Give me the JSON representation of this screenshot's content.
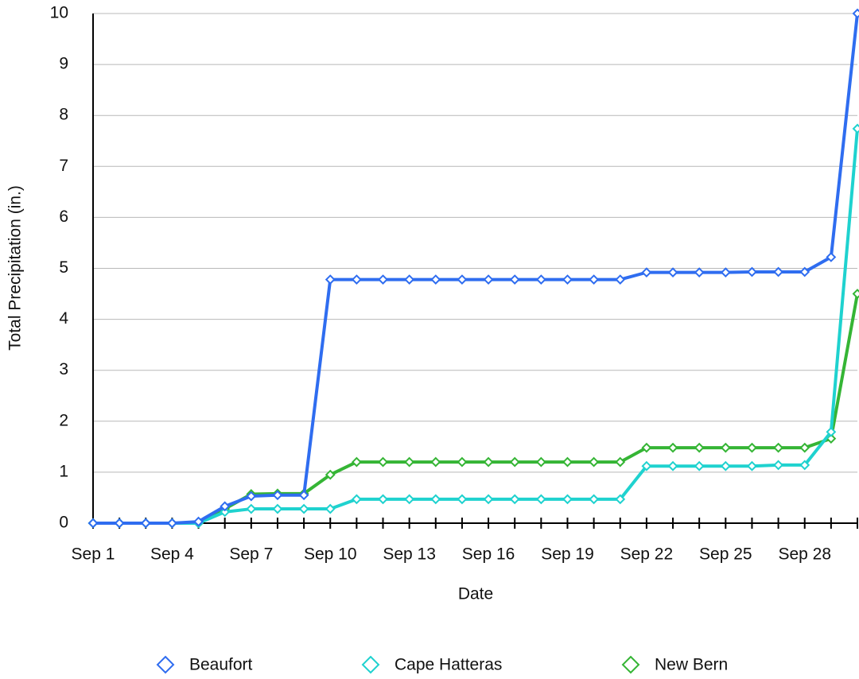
{
  "chart_data": {
    "type": "line",
    "x_label": "Date",
    "y_label": "Total Precipitation (in.)",
    "categories": [
      "Sep 1",
      null,
      null,
      "Sep 4",
      null,
      null,
      "Sep 7",
      null,
      null,
      "Sep 10",
      null,
      null,
      "Sep 13",
      null,
      null,
      "Sep 16",
      null,
      null,
      "Sep 19",
      null,
      null,
      "Sep 22",
      null,
      null,
      "Sep 25",
      null,
      null,
      "Sep 28",
      null,
      null
    ],
    "series": [
      {
        "name": "Beaufort",
        "color": "#2f6df0",
        "values": [
          0,
          0,
          0,
          0,
          0.03,
          0.33,
          0.53,
          0.55,
          0.55,
          4.78,
          4.78,
          4.78,
          4.78,
          4.78,
          4.78,
          4.78,
          4.78,
          4.78,
          4.78,
          4.78,
          4.78,
          4.92,
          4.92,
          4.92,
          4.92,
          4.93,
          4.93,
          4.93,
          5.22,
          10
        ]
      },
      {
        "name": "Cape Hatteras",
        "color": "#1fd2cf",
        "values": [
          0,
          0,
          0,
          0,
          0,
          0.22,
          0.28,
          0.28,
          0.28,
          0.28,
          0.47,
          0.47,
          0.47,
          0.47,
          0.47,
          0.47,
          0.47,
          0.47,
          0.47,
          0.47,
          0.47,
          1.12,
          1.12,
          1.12,
          1.12,
          1.12,
          1.14,
          1.14,
          1.79,
          7.74
        ]
      },
      {
        "name": "New Bern",
        "color": "#35b535",
        "values": [
          0,
          0,
          0,
          0,
          0,
          0.28,
          0.57,
          0.58,
          0.58,
          0.95,
          1.2,
          1.2,
          1.2,
          1.2,
          1.2,
          1.2,
          1.2,
          1.2,
          1.2,
          1.2,
          1.2,
          1.48,
          1.48,
          1.48,
          1.48,
          1.48,
          1.48,
          1.48,
          1.66,
          4.5
        ]
      }
    ],
    "ylim": [
      0,
      10
    ],
    "yticks": [
      0,
      1,
      2,
      3,
      4,
      5,
      6,
      7,
      8,
      9,
      10
    ],
    "grid": true,
    "legend": "bottom"
  }
}
